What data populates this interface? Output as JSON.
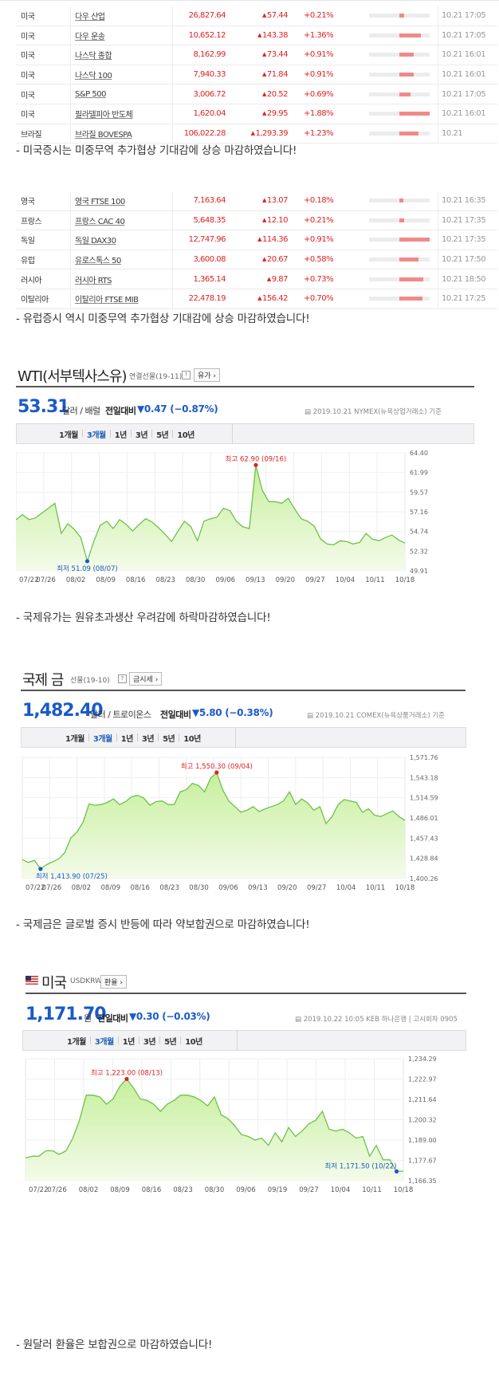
{
  "us_table": [
    {
      "country": "미국",
      "name": "다우 산업",
      "value": "26,827.64",
      "change": "57.44",
      "pct": "+0.21%",
      "bar": 0.08,
      "time": "10.21 17:05"
    },
    {
      "country": "미국",
      "name": "다우 운송",
      "value": "10,652.12",
      "change": "143.38",
      "pct": "+1.36%",
      "bar": 0.36,
      "time": "10.21 17:05"
    },
    {
      "country": "미국",
      "name": "나스닥 종합",
      "value": "8,162.99",
      "change": "73.44",
      "pct": "+0.91%",
      "bar": 0.24,
      "time": "10.21 16:01"
    },
    {
      "country": "미국",
      "name": "나스닥 100",
      "value": "7,940.33",
      "change": "71.84",
      "pct": "+0.91%",
      "bar": 0.24,
      "time": "10.21 16:01"
    },
    {
      "country": "미국",
      "name": "S&P 500",
      "value": "3,006.72",
      "change": "20.52",
      "pct": "+0.69%",
      "bar": 0.18,
      "time": "10.21 17:05"
    },
    {
      "country": "미국",
      "name": "필라델피아 반도체",
      "value": "1,620.04",
      "change": "29.95",
      "pct": "+1.88%",
      "bar": 0.5,
      "time": "10.21 16:01"
    },
    {
      "country": "브라질",
      "name": "브라질 BOVESPA",
      "value": "106,022.28",
      "change": "1,293.39",
      "pct": "+1.23%",
      "bar": 0.32,
      "time": "10.21"
    }
  ],
  "note1": "- 미국증시는 미중무역 추가협상 기대감에 상승 마감하였습니다!",
  "eu_table": [
    {
      "country": "영국",
      "name": "영국 FTSE 100",
      "value": "7,163.64",
      "change": "13.07",
      "pct": "+0.18%",
      "bar": 0.07,
      "time": "10.21 16:35"
    },
    {
      "country": "프랑스",
      "name": "프랑스 CAC 40",
      "value": "5,648.35",
      "change": "12.10",
      "pct": "+0.21%",
      "bar": 0.08,
      "time": "10.21 17:35"
    },
    {
      "country": "독일",
      "name": "독일 DAX30",
      "value": "12,747.96",
      "change": "114.36",
      "pct": "+0.91%",
      "bar": 0.5,
      "time": "10.21 17:35"
    },
    {
      "country": "유럽",
      "name": "유로스톡스 50",
      "value": "3,600.08",
      "change": "20.67",
      "pct": "+0.58%",
      "bar": 0.32,
      "time": "10.21 17:50"
    },
    {
      "country": "러시아",
      "name": "러시아 RTS",
      "value": "1,365.14",
      "change": "9.87",
      "pct": "+0.73%",
      "bar": 0.4,
      "time": "10.21 18:50"
    },
    {
      "country": "이탈리아",
      "name": "이탈리아 FTSE MIB",
      "value": "22,478.19",
      "change": "156.42",
      "pct": "+0.70%",
      "bar": 0.38,
      "time": "10.21 17:25"
    }
  ],
  "note2": "- 유럽증시 역시 미중무역 추가협상 기대감에 상승 마감하였습니다!",
  "wti": {
    "title": "WTI(서부텍사스유)",
    "subtitle": "연결선물(19-11)",
    "help": "?",
    "button": "유가 ›",
    "value": "53.31",
    "unit": "달러 / 배럴",
    "change_label": "전일대비",
    "change": "▼0.47 (−0.87%)",
    "source": "2019.10.21  NYMEX(뉴욕상업거래소) 기준",
    "tabs": [
      "1개월",
      "3개월",
      "1년",
      "3년",
      "5년",
      "10년"
    ],
    "active_tab": "3개월",
    "high_label": "최고 62.90 (09/16)",
    "low_label": "최저 51.09 (08/07)"
  },
  "note3": "- 국제유가는 원유초과생산 우려감에 하락마감하였습니다!",
  "gold": {
    "title": "국제 금",
    "subtitle": "선물(19-10)",
    "help": "?",
    "button": "금시세 ›",
    "value": "1,482.40",
    "unit": "달러 / 트로이온스",
    "change_label": "전일대비",
    "change": "▼5.80 (−0.38%)",
    "source": "2019.10.21  COMEX(뉴욕상품거래소) 기준",
    "tabs": [
      "1개월",
      "3개월",
      "1년",
      "3년",
      "5년",
      "10년"
    ],
    "active_tab": "3개월",
    "high_label": "최고 1,550.30 (09/04)",
    "low_label": "최저 1,413.90 (07/25)"
  },
  "note4": "- 국제금은 글로벌 증시 반등에 따라 약보합권으로 마감하였습니다!",
  "usd": {
    "title": "미국",
    "subtitle": "USDKRW",
    "button": "환율 ›",
    "value": "1,171.70",
    "unit": "원",
    "change_label": "전일대비",
    "change": "▼0.30 (−0.03%)",
    "source": "2019.10.22 10:05  KEB 하나은행  |  고시회차 0905",
    "tabs": [
      "1개월",
      "3개월",
      "1년",
      "3년",
      "5년",
      "10년"
    ],
    "active_tab": "3개월",
    "high_label": "최고 1,223.00 (08/13)",
    "low_label": "최저 1,171.50 (10/22)"
  },
  "note5": "- 원달러 환율은 보합권으로 마감하였습니다!",
  "colors": {
    "up": "#dd2222",
    "down": "#1a5ac8",
    "line": "#6cc24a",
    "fill_top": "#c6ef9c",
    "fill_bottom": "#f4fbea"
  },
  "chart_data": [
    {
      "type": "area",
      "title": "WTI(서부텍사스유)",
      "x_ticks": [
        "07/22",
        "07/26",
        "08/02",
        "08/09",
        "08/16",
        "08/23",
        "08/30",
        "09/06",
        "09/13",
        "09/20",
        "09/27",
        "10/04",
        "10/11",
        "10/18"
      ],
      "y_ticks": [
        64.4,
        61.99,
        59.57,
        57.16,
        54.74,
        52.32,
        49.91
      ],
      "ylim": [
        49.91,
        64.4
      ],
      "values": [
        56.2,
        56.8,
        56.2,
        56.4,
        57.0,
        57.6,
        58.2,
        54.5,
        55.7,
        55.0,
        54.0,
        51.09,
        53.5,
        55.5,
        56.0,
        55.1,
        56.2,
        55.6,
        54.8,
        55.6,
        56.3,
        55.9,
        55.2,
        54.4,
        53.5,
        54.8,
        56.0,
        55.3,
        53.6,
        56.0,
        56.3,
        56.5,
        57.6,
        57.3,
        56.0,
        55.3,
        55.1,
        62.9,
        59.8,
        58.4,
        58.4,
        58.2,
        58.8,
        57.5,
        56.3,
        56.0,
        55.4,
        53.8,
        53.2,
        53.1,
        53.6,
        53.5,
        53.2,
        53.4,
        54.5,
        53.8,
        53.6,
        54.0,
        54.3,
        53.7,
        53.31
      ],
      "high": {
        "label": "최고 62.90 (09/16)",
        "value": 62.9
      },
      "low": {
        "label": "최저 51.09 (08/07)",
        "value": 51.09
      }
    },
    {
      "type": "area",
      "title": "국제 금",
      "x_ticks": [
        "07/22",
        "07/26",
        "08/02",
        "08/09",
        "08/16",
        "08/23",
        "08/30",
        "09/06",
        "09/13",
        "09/20",
        "09/27",
        "10/04",
        "10/11",
        "10/18"
      ],
      "y_ticks": [
        1571.76,
        1543.18,
        1514.59,
        1486.01,
        1457.43,
        1428.84,
        1400.26
      ],
      "ylim": [
        1400.26,
        1571.76
      ],
      "values": [
        1427,
        1423,
        1426,
        1413.9,
        1420,
        1424,
        1428,
        1437,
        1458,
        1466,
        1480,
        1506,
        1504,
        1505,
        1508,
        1513,
        1505,
        1509,
        1516,
        1518,
        1514,
        1504,
        1509,
        1510,
        1505,
        1505,
        1523,
        1526,
        1535,
        1532,
        1523,
        1542,
        1550.3,
        1526,
        1510,
        1502,
        1494,
        1497,
        1502,
        1495,
        1499,
        1502,
        1505,
        1510,
        1523,
        1505,
        1513,
        1507,
        1497,
        1502,
        1478,
        1488,
        1505,
        1512,
        1510,
        1508,
        1494,
        1499,
        1490,
        1488,
        1492,
        1496,
        1488,
        1482.4
      ],
      "high": {
        "label": "최고 1,550.30 (09/04)",
        "value": 1550.3
      },
      "low": {
        "label": "최저 1,413.90 (07/25)",
        "value": 1413.9
      }
    },
    {
      "type": "area",
      "title": "미국",
      "x_ticks": [
        "07/22",
        "07/26",
        "08/02",
        "08/09",
        "08/16",
        "08/23",
        "08/30",
        "09/06",
        "09/19",
        "09/27",
        "10/04",
        "10/11",
        "10/18"
      ],
      "y_ticks": [
        1234.29,
        1222.97,
        1211.64,
        1200.32,
        1189.0,
        1177.67,
        1166.35
      ],
      "ylim": [
        1166.35,
        1234.29
      ],
      "values": [
        1179,
        1180,
        1180,
        1183,
        1183,
        1181,
        1183,
        1190,
        1200,
        1214,
        1214,
        1213,
        1209,
        1212,
        1219,
        1223,
        1218,
        1212,
        1211,
        1209,
        1205,
        1209,
        1211,
        1214,
        1214,
        1213,
        1211,
        1208,
        1213,
        1203,
        1201,
        1197,
        1192,
        1191,
        1189,
        1190,
        1186,
        1193,
        1188,
        1196,
        1191,
        1194,
        1198,
        1200,
        1205,
        1195,
        1194,
        1195,
        1193,
        1190,
        1191,
        1180,
        1186,
        1178,
        1178,
        1171.5,
        1171.7
      ],
      "high": {
        "label": "최고 1,223.00 (08/13)",
        "value": 1223.0
      },
      "low": {
        "label": "최저 1,171.50 (10/22)",
        "value": 1171.5
      }
    }
  ]
}
